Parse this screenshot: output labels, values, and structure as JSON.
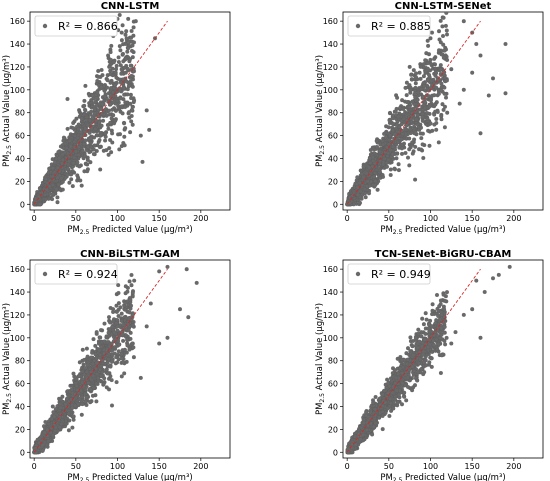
{
  "chart_data": [
    {
      "type": "scatter",
      "title": "CNN-LSTM",
      "xlabel": "PM2.5 Predicted Value (μg/m³)",
      "ylabel": "PM2.5 Actual Value (μg/m³)",
      "xlim": [
        -5,
        235
      ],
      "ylim": [
        -5,
        168
      ],
      "xticks": [
        0,
        50,
        100,
        150,
        200
      ],
      "yticks": [
        0,
        20,
        40,
        60,
        80,
        100,
        120,
        140,
        160
      ],
      "legend": "R² = 0.866",
      "legend_loc": "top-left",
      "r2": 0.866,
      "point_color": "#696969",
      "line_color": "#d62728",
      "reference_line": {
        "x": [
          0,
          160
        ],
        "y": [
          0,
          160
        ]
      },
      "spread": 0.22,
      "outliers": [
        [
          95,
          147
        ],
        [
          100,
          162
        ],
        [
          122,
          160
        ],
        [
          105,
          150
        ],
        [
          110,
          140
        ],
        [
          130,
          37
        ],
        [
          128,
          60
        ],
        [
          138,
          65
        ],
        [
          110,
          115
        ],
        [
          90,
          120
        ],
        [
          145,
          145
        ],
        [
          135,
          82
        ],
        [
          70,
          95
        ],
        [
          60,
          86
        ],
        [
          40,
          92
        ],
        [
          112,
          96
        ]
      ],
      "n_points": 1600
    },
    {
      "type": "scatter",
      "title": "CNN-LSTM-SENet",
      "xlabel": "PM2.5 Predicted Value (μg/m³)",
      "ylabel": "PM2.5 Actual Value (μg/m³)",
      "xlim": [
        -5,
        235
      ],
      "ylim": [
        -5,
        168
      ],
      "xticks": [
        0,
        50,
        100,
        150,
        200
      ],
      "yticks": [
        0,
        20,
        40,
        60,
        80,
        100,
        120,
        140,
        160
      ],
      "legend": "R² = 0.885",
      "legend_loc": "top-left",
      "r2": 0.885,
      "point_color": "#696969",
      "line_color": "#d62728",
      "reference_line": {
        "x": [
          0,
          160
        ],
        "y": [
          0,
          160
        ]
      },
      "spread": 0.2,
      "outliers": [
        [
          140,
          160
        ],
        [
          150,
          150
        ],
        [
          155,
          140
        ],
        [
          160,
          130
        ],
        [
          190,
          140
        ],
        [
          170,
          95
        ],
        [
          175,
          110
        ],
        [
          160,
          62
        ],
        [
          140,
          100
        ],
        [
          125,
          118
        ],
        [
          150,
          115
        ],
        [
          135,
          88
        ],
        [
          75,
          120
        ],
        [
          95,
          132
        ],
        [
          100,
          145
        ],
        [
          120,
          80
        ],
        [
          190,
          97
        ]
      ],
      "n_points": 1600
    },
    {
      "type": "scatter",
      "title": "CNN-BiLSTM-GAM",
      "xlabel": "PM2.5 Predicted Value (μg/m³)",
      "ylabel": "PM2.5 Actual Value (μg/m³)",
      "xlim": [
        -5,
        235
      ],
      "ylim": [
        -5,
        168
      ],
      "xticks": [
        0,
        50,
        100,
        150,
        200
      ],
      "yticks": [
        0,
        20,
        40,
        60,
        80,
        100,
        120,
        140,
        160
      ],
      "legend": "R² = 0.924",
      "legend_loc": "top-left",
      "r2": 0.924,
      "point_color": "#696969",
      "line_color": "#d62728",
      "reference_line": {
        "x": [
          0,
          160
        ],
        "y": [
          0,
          160
        ]
      },
      "spread": 0.15,
      "outliers": [
        [
          150,
          158
        ],
        [
          160,
          162
        ],
        [
          183,
          160
        ],
        [
          195,
          148
        ],
        [
          175,
          125
        ],
        [
          185,
          118
        ],
        [
          150,
          95
        ],
        [
          160,
          100
        ],
        [
          135,
          110
        ],
        [
          128,
          65
        ],
        [
          140,
          130
        ],
        [
          110,
          145
        ],
        [
          120,
          150
        ],
        [
          100,
          110
        ],
        [
          75,
          105
        ]
      ],
      "n_points": 1600
    },
    {
      "type": "scatter",
      "title": "TCN-SENet-BiGRU-CBAM",
      "xlabel": "PM2.5 Predicted Value (μg/m³)",
      "ylabel": "PM2.5 Actual Value (μg/m³)",
      "xlim": [
        -5,
        235
      ],
      "ylim": [
        -5,
        168
      ],
      "xticks": [
        0,
        50,
        100,
        150,
        200
      ],
      "yticks": [
        0,
        20,
        40,
        60,
        80,
        100,
        120,
        140,
        160
      ],
      "legend": "R² = 0.949",
      "legend_loc": "top-left",
      "r2": 0.949,
      "point_color": "#696969",
      "line_color": "#d62728",
      "reference_line": {
        "x": [
          0,
          160
        ],
        "y": [
          0,
          160
        ]
      },
      "spread": 0.11,
      "outliers": [
        [
          195,
          162
        ],
        [
          175,
          152
        ],
        [
          182,
          155
        ],
        [
          155,
          150
        ],
        [
          165,
          140
        ],
        [
          150,
          125
        ],
        [
          140,
          120
        ],
        [
          130,
          105
        ],
        [
          125,
          95
        ],
        [
          160,
          100
        ],
        [
          108,
          90
        ],
        [
          85,
          70
        ]
      ],
      "n_points": 1600
    }
  ]
}
